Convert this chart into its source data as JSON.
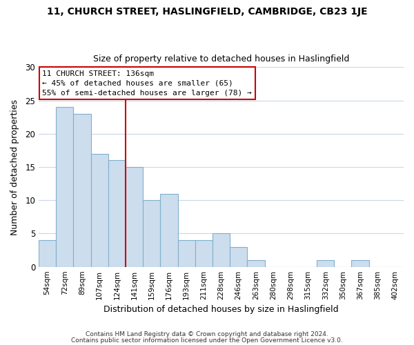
{
  "title1": "11, CHURCH STREET, HASLINGFIELD, CAMBRIDGE, CB23 1JE",
  "title2": "Size of property relative to detached houses in Haslingfield",
  "xlabel": "Distribution of detached houses by size in Haslingfield",
  "ylabel": "Number of detached properties",
  "bar_labels": [
    "54sqm",
    "72sqm",
    "89sqm",
    "107sqm",
    "124sqm",
    "141sqm",
    "159sqm",
    "176sqm",
    "193sqm",
    "211sqm",
    "228sqm",
    "246sqm",
    "263sqm",
    "280sqm",
    "298sqm",
    "315sqm",
    "332sqm",
    "350sqm",
    "367sqm",
    "385sqm",
    "402sqm"
  ],
  "bar_values": [
    4,
    24,
    23,
    17,
    16,
    15,
    10,
    11,
    4,
    4,
    5,
    3,
    1,
    0,
    0,
    0,
    1,
    0,
    1,
    0,
    0
  ],
  "bar_color": "#ccdded",
  "bar_edge_color": "#7fb0cc",
  "annotation_title": "11 CHURCH STREET: 136sqm",
  "annotation_line1": "← 45% of detached houses are smaller (65)",
  "annotation_line2": "55% of semi-detached houses are larger (78) →",
  "annotation_box_color": "#ffffff",
  "annotation_box_edge": "#cc0000",
  "vline_color": "#cc0000",
  "vline_x_index": 5,
  "ylim": [
    0,
    30
  ],
  "yticks": [
    0,
    5,
    10,
    15,
    20,
    25,
    30
  ],
  "grid_color": "#c8d8e8",
  "footer1": "Contains HM Land Registry data © Crown copyright and database right 2024.",
  "footer2": "Contains public sector information licensed under the Open Government Licence v3.0."
}
